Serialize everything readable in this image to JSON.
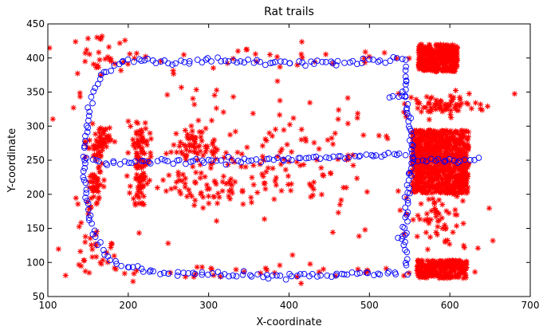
{
  "chart_data": {
    "type": "scatter",
    "title": "Rat trails",
    "xlabel": "X-coordinate",
    "ylabel": "Y-coordinate",
    "xlim": [
      100,
      700
    ],
    "ylim": [
      50,
      450
    ],
    "xticks": [
      100,
      200,
      300,
      400,
      500,
      600,
      700
    ],
    "yticks": [
      50,
      100,
      150,
      200,
      250,
      300,
      350,
      400,
      450
    ],
    "grid": false,
    "series": [
      {
        "marker": "circle",
        "color": "#0000ff",
        "description_of_path": "closed loop trails",
        "paths": [
          [
            [
              545,
              398
            ],
            [
              520,
              396
            ],
            [
              500,
              395
            ],
            [
              480,
              394
            ],
            [
              460,
              393
            ],
            [
              440,
              394
            ],
            [
              420,
              395
            ],
            [
              400,
              394
            ],
            [
              380,
              393
            ],
            [
              360,
              394
            ],
            [
              340,
              395
            ],
            [
              320,
              396
            ],
            [
              300,
              396
            ],
            [
              280,
              395
            ],
            [
              260,
              393
            ],
            [
              240,
              394
            ],
            [
              225,
              397
            ],
            [
              212,
              398
            ],
            [
              200,
              396
            ],
            [
              188,
              392
            ],
            [
              178,
              386
            ],
            [
              170,
              378
            ],
            [
              163,
              368
            ],
            [
              158,
              355
            ],
            [
              155,
              342
            ],
            [
              152,
              328
            ],
            [
              150,
              315
            ],
            [
              149,
              302
            ],
            [
              148,
              290
            ],
            [
              147,
              278
            ],
            [
              146,
              265
            ],
            [
              145,
              252
            ],
            [
              145,
              240
            ],
            [
              145,
              228
            ],
            [
              146,
              215
            ],
            [
              147,
              202
            ],
            [
              148,
              190
            ],
            [
              150,
              178
            ],
            [
              152,
              165
            ],
            [
              155,
              152
            ],
            [
              158,
              140
            ],
            [
              162,
              128
            ],
            [
              167,
              118
            ],
            [
              174,
              108
            ],
            [
              184,
              100
            ],
            [
              196,
              94
            ],
            [
              210,
              90
            ],
            [
              225,
              88
            ],
            [
              240,
              86
            ],
            [
              260,
              85
            ],
            [
              280,
              84
            ],
            [
              300,
              83
            ],
            [
              320,
              82
            ],
            [
              340,
              82
            ],
            [
              360,
              81
            ],
            [
              380,
              80
            ],
            [
              400,
              80
            ],
            [
              420,
              81
            ],
            [
              440,
              81
            ],
            [
              460,
              82
            ],
            [
              480,
              82
            ],
            [
              500,
              83
            ],
            [
              520,
              84
            ],
            [
              540,
              86
            ]
          ],
          [
            [
              150,
              250
            ],
            [
              160,
              249
            ],
            [
              175,
              247
            ],
            [
              190,
              246
            ],
            [
              205,
              247
            ],
            [
              220,
              248
            ],
            [
              240,
              249
            ],
            [
              260,
              249
            ],
            [
              280,
              249
            ],
            [
              300,
              250
            ],
            [
              320,
              250
            ],
            [
              340,
              250
            ],
            [
              360,
              251
            ],
            [
              380,
              252
            ],
            [
              400,
              252
            ],
            [
              420,
              252
            ],
            [
              440,
              253
            ],
            [
              460,
              254
            ],
            [
              480,
              255
            ],
            [
              500,
              256
            ],
            [
              520,
              258
            ],
            [
              540,
              259
            ],
            [
              555,
              258
            ]
          ],
          [
            [
              548,
              88
            ],
            [
              546,
              100
            ],
            [
              545,
              112
            ],
            [
              544,
              125
            ],
            [
              544,
              140
            ],
            [
              545,
              155
            ],
            [
              546,
              170
            ],
            [
              547,
              185
            ],
            [
              548,
              200
            ],
            [
              549,
              215
            ],
            [
              550,
              230
            ],
            [
              552,
              245
            ],
            [
              553,
              260
            ],
            [
              552,
              275
            ],
            [
              551,
              290
            ],
            [
              550,
              305
            ],
            [
              548,
              320
            ],
            [
              546,
              335
            ],
            [
              545,
              350
            ],
            [
              544,
              365
            ],
            [
              545,
              380
            ],
            [
              546,
              392
            ]
          ],
          [
            [
              560,
              250
            ],
            [
              575,
              252
            ],
            [
              590,
              250
            ],
            [
              605,
              249
            ],
            [
              620,
              250
            ],
            [
              635,
              252
            ],
            [
              642,
              250
            ]
          ],
          [
            [
              525,
              345
            ],
            [
              535,
              343
            ],
            [
              545,
              344
            ]
          ],
          [
            [
              535,
              135
            ],
            [
              541,
              140
            ],
            [
              545,
              142
            ]
          ]
        ]
      },
      {
        "marker": "asterisk",
        "color": "#ff0000",
        "clusters": [
          {
            "cx": 588,
            "cy": 248,
            "sx": 32,
            "sy": 42,
            "n": 900
          },
          {
            "cx": 585,
            "cy": 400,
            "sx": 22,
            "sy": 18,
            "n": 380
          },
          {
            "cx": 590,
            "cy": 90,
            "sx": 28,
            "sy": 12,
            "n": 260
          },
          {
            "cx": 590,
            "cy": 330,
            "sx": 25,
            "sy": 8,
            "n": 70
          },
          {
            "cx": 590,
            "cy": 165,
            "sx": 25,
            "sy": 25,
            "n": 60
          },
          {
            "cx": 165,
            "cy": 275,
            "sx": 6,
            "sy": 12,
            "n": 60
          },
          {
            "cx": 160,
            "cy": 215,
            "sx": 6,
            "sy": 12,
            "n": 40
          },
          {
            "cx": 215,
            "cy": 268,
            "sx": 6,
            "sy": 18,
            "n": 60
          },
          {
            "cx": 215,
            "cy": 215,
            "sx": 6,
            "sy": 15,
            "n": 40
          },
          {
            "cx": 280,
            "cy": 270,
            "sx": 25,
            "sy": 15,
            "n": 60
          },
          {
            "cx": 300,
            "cy": 215,
            "sx": 35,
            "sy": 18,
            "n": 60
          },
          {
            "cx": 400,
            "cy": 260,
            "sx": 70,
            "sy": 28,
            "n": 70
          },
          {
            "cx": 370,
            "cy": 215,
            "sx": 60,
            "sy": 15,
            "n": 40
          },
          {
            "cx": 330,
            "cy": 320,
            "sx": 160,
            "sy": 50,
            "n": 45
          },
          {
            "cx": 340,
            "cy": 150,
            "sx": 160,
            "sy": 50,
            "n": 30
          },
          {
            "cx": 170,
            "cy": 400,
            "sx": 25,
            "sy": 15,
            "n": 25
          },
          {
            "cx": 360,
            "cy": 400,
            "sx": 150,
            "sy": 8,
            "n": 40
          },
          {
            "cx": 360,
            "cy": 85,
            "sx": 150,
            "sy": 6,
            "n": 35
          },
          {
            "cx": 165,
            "cy": 100,
            "sx": 15,
            "sy": 15,
            "n": 20
          },
          {
            "cx": 155,
            "cy": 160,
            "sx": 8,
            "sy": 30,
            "n": 20
          }
        ]
      }
    ]
  }
}
